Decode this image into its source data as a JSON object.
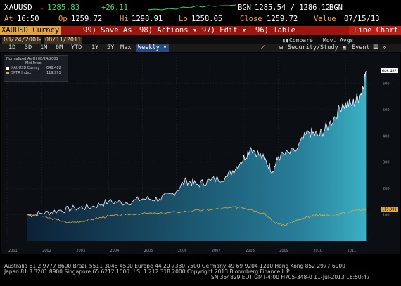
{
  "quote": {
    "ticker": "XAUUSD",
    "arrow": "↓",
    "last": "1285.83",
    "change": "+26.11",
    "bid_label": "BGN",
    "bid_ask": "1285.54 / 1286.12",
    "ask_src": "BGN",
    "time_label": "At",
    "time": "16:50",
    "op_label": "Op",
    "open": "1259.72",
    "hi_label": "Hi",
    "high": "1298.91",
    "lo_label": "Lo",
    "low": "1258.05",
    "close_label": "Close",
    "close": "1259.72",
    "value_label": "Value",
    "value_date": "07/15/13"
  },
  "menubar": {
    "security": "XAUUSD Curncy",
    "save_as": "99) Save As",
    "actions": "98) Actions ▾",
    "edit": "97) Edit ▾",
    "table": "96) Table",
    "chart_type": "Line Chart"
  },
  "datebar": {
    "start_date": "08/24/2001",
    "end_date": "08/11/2011",
    "compare": "Compare",
    "mov_avgs": "Mov. Avgs"
  },
  "periodbar": {
    "periods": [
      "1D",
      "3D",
      "1M",
      "6M",
      "YTD",
      "1Y",
      "5Y",
      "Max"
    ],
    "selected_period": "Weekly ▾",
    "security_study": "Security/Study",
    "event": "Event"
  },
  "legend": {
    "title1": "Normalized As Of 08/24/2001",
    "title2": "Mid Price",
    "series": [
      {
        "name": "XAUUSD Curncy",
        "value": "646.482",
        "color": "#2f76b8"
      },
      {
        "name": "SPTR Index",
        "value": "119.991",
        "color": "#e1a83c"
      }
    ]
  },
  "chart_data": {
    "type": "area",
    "x": [
      "2001",
      "2002",
      "2003",
      "2004",
      "2005",
      "2006",
      "2007",
      "2008",
      "2009",
      "2010",
      "2011"
    ],
    "ylim": [
      0,
      700
    ],
    "yticks": [
      100,
      200,
      300,
      400,
      500,
      600
    ],
    "series": [
      {
        "name": "XAUUSD Curncy",
        "color": "#2f76b8",
        "points": [
          [
            2001.6,
            100
          ],
          [
            2002.0,
            105
          ],
          [
            2002.5,
            115
          ],
          [
            2003.0,
            125
          ],
          [
            2003.5,
            130
          ],
          [
            2004.0,
            150
          ],
          [
            2004.5,
            145
          ],
          [
            2005.0,
            160
          ],
          [
            2005.5,
            160
          ],
          [
            2005.9,
            180
          ],
          [
            2006.3,
            230
          ],
          [
            2006.6,
            215
          ],
          [
            2007.0,
            230
          ],
          [
            2007.5,
            245
          ],
          [
            2007.9,
            300
          ],
          [
            2008.2,
            355
          ],
          [
            2008.6,
            310
          ],
          [
            2008.85,
            265
          ],
          [
            2009.0,
            320
          ],
          [
            2009.5,
            340
          ],
          [
            2009.9,
            415
          ],
          [
            2010.2,
            400
          ],
          [
            2010.5,
            440
          ],
          [
            2010.9,
            520
          ],
          [
            2011.2,
            520
          ],
          [
            2011.45,
            560
          ],
          [
            2011.6,
            646.482
          ]
        ]
      },
      {
        "name": "SPTR Index",
        "color": "#e1a83c",
        "points": [
          [
            2001.6,
            100
          ],
          [
            2002.0,
            95
          ],
          [
            2002.5,
            80
          ],
          [
            2002.8,
            70
          ],
          [
            2003.2,
            75
          ],
          [
            2003.6,
            85
          ],
          [
            2004.0,
            95
          ],
          [
            2004.5,
            100
          ],
          [
            2005.0,
            105
          ],
          [
            2005.5,
            105
          ],
          [
            2006.0,
            110
          ],
          [
            2006.5,
            115
          ],
          [
            2007.0,
            120
          ],
          [
            2007.5,
            125
          ],
          [
            2007.9,
            130
          ],
          [
            2008.2,
            120
          ],
          [
            2008.6,
            105
          ],
          [
            2008.9,
            70
          ],
          [
            2009.2,
            60
          ],
          [
            2009.6,
            80
          ],
          [
            2010.0,
            95
          ],
          [
            2010.3,
            100
          ],
          [
            2010.6,
            95
          ],
          [
            2011.0,
            110
          ],
          [
            2011.4,
            120
          ],
          [
            2011.6,
            119.991
          ]
        ]
      }
    ]
  },
  "footer": {
    "line1": "Australia 61 2 9777 8600 Brazil 5511 3048 4500 Europe 44 20 7330 7500 Germany 49 69 9204 1210 Hong Kong 852 2977 6000",
    "line2": "Japan 81 3 3201 8900        Singapore 65 6212 1000      U.S. 1 212 318 2000          Copyright 2013 Bloomberg Finance L.P.",
    "line3": "SN 354829 EDT  GMT-4:00 H705-348-0 11-Jul-2013 16:50:47"
  }
}
